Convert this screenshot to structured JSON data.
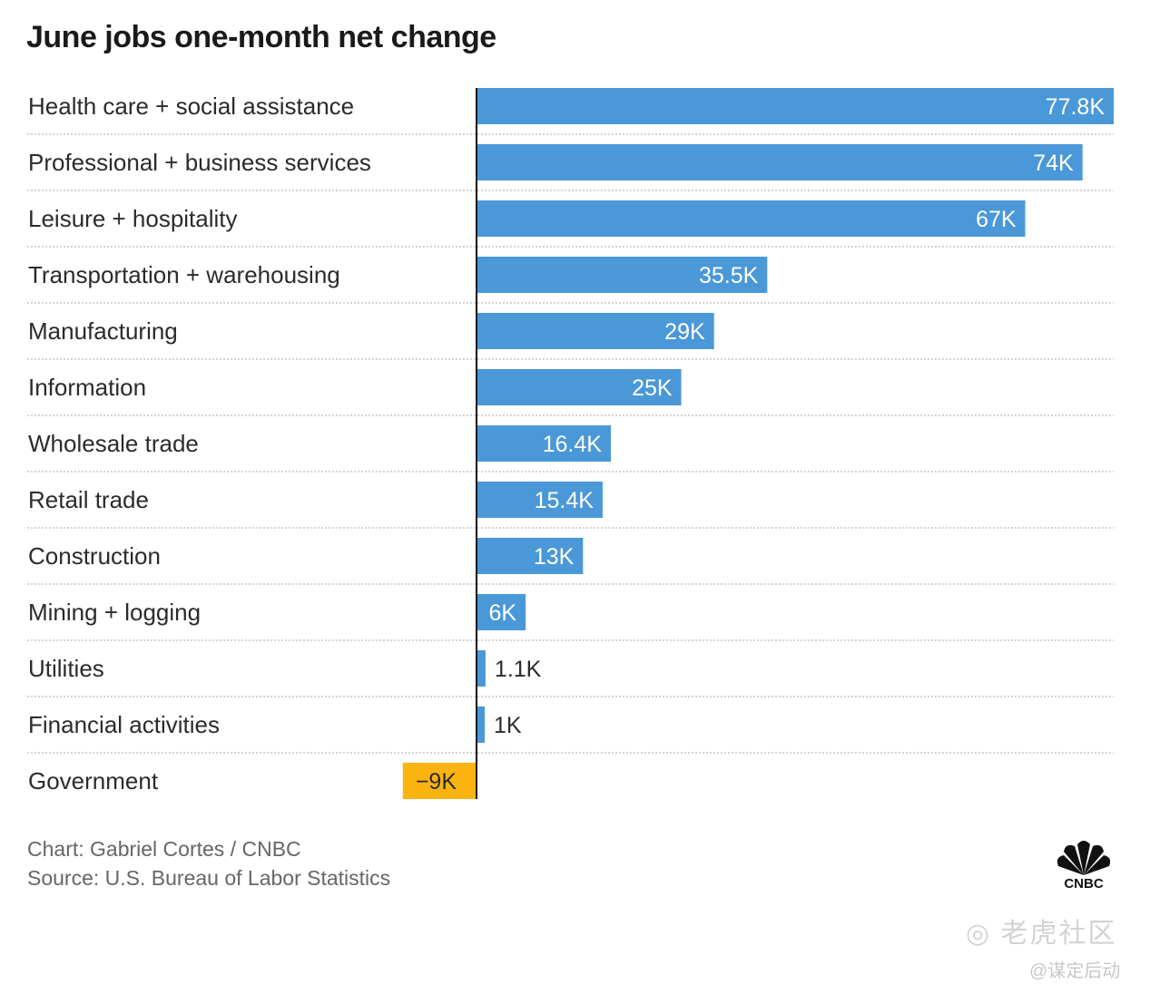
{
  "chart_data": {
    "type": "bar",
    "orientation": "horizontal",
    "title": "June jobs one-month net change",
    "xlabel": "",
    "ylabel": "",
    "unit_suffix": "K",
    "categories": [
      "Health care + social assistance",
      "Professional + business services",
      "Leisure + hospitality",
      "Transportation + warehousing",
      "Manufacturing",
      "Information",
      "Wholesale trade",
      "Retail trade",
      "Construction",
      "Mining + logging",
      "Utilities",
      "Financial activities",
      "Government"
    ],
    "values": [
      77.8,
      74,
      67,
      35.5,
      29,
      25,
      16.4,
      15.4,
      13,
      6,
      1.1,
      1,
      -9
    ],
    "data_labels": [
      "77.8K",
      "74K",
      "67K",
      "35.5K",
      "29K",
      "25K",
      "16.4K",
      "15.4K",
      "13K",
      "6K",
      "1.1K",
      "1K",
      "−9K"
    ],
    "xlim": [
      -9,
      77.8
    ],
    "grid": false,
    "legend": "none",
    "colors": {
      "positive": "#4a98d8",
      "negative": "#fbb40f",
      "axis": "#111111",
      "separator": "#d4d4d4"
    }
  },
  "footer": {
    "credit": "Chart: Gabriel Cortes / CNBC",
    "source": "Source: U.S. Bureau of Labor Statistics",
    "logo": "CNBC"
  },
  "watermark": {
    "line1": "老虎社区",
    "line2": "@谋定后动"
  }
}
